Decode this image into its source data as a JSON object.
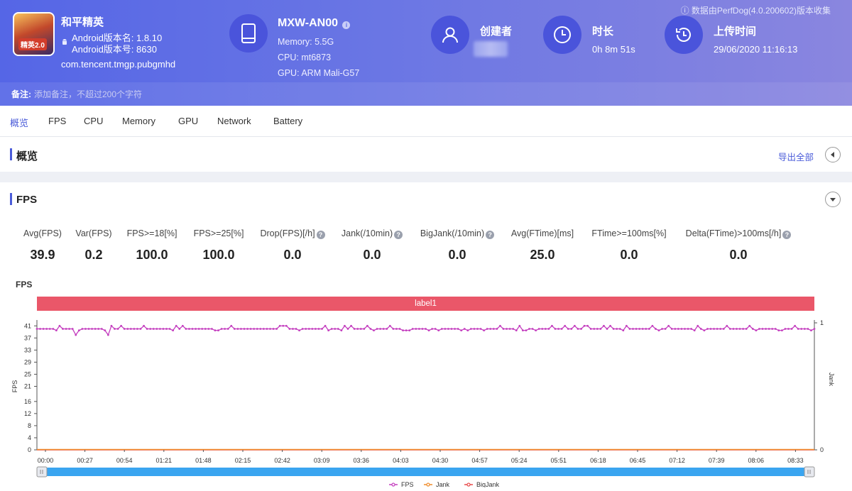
{
  "header": {
    "note": "ⓘ 数据由PerfDog(4.0.200602)版本收集",
    "app": {
      "icon_badge": "精英2.0",
      "name": "和平精英",
      "version_name": "Android版本名: 1.8.10",
      "version_code": "Android版本号: 8630",
      "package": "com.tencent.tmgp.pubgmhd"
    },
    "device": {
      "title": "MXW-AN00",
      "memory": "Memory: 5.5G",
      "cpu": "CPU: mt6873",
      "gpu": "GPU: ARM Mali-G57"
    },
    "creator": {
      "title": "创建者"
    },
    "duration": {
      "title": "时长",
      "value": "0h 8m 51s"
    },
    "upload": {
      "title": "上传时间",
      "value": "29/06/2020 11:16:13"
    },
    "remark": {
      "label": "备注:",
      "placeholder": "添加备注，不超过200个字符"
    }
  },
  "tabs": [
    "概览",
    "FPS",
    "CPU",
    "Memory",
    "GPU",
    "Network",
    "Battery"
  ],
  "overview": {
    "title": "概览",
    "export": "导出全部"
  },
  "fps_section": {
    "title": "FPS",
    "metrics": [
      {
        "label": "Avg(FPS)",
        "value": "39.9",
        "help": false
      },
      {
        "label": "Var(FPS)",
        "value": "0.2",
        "help": false
      },
      {
        "label": "FPS>=18[%]",
        "value": "100.0",
        "help": false
      },
      {
        "label": "FPS>=25[%]",
        "value": "100.0",
        "help": false
      },
      {
        "label": "Drop(FPS)[/h]",
        "value": "0.0",
        "help": true
      },
      {
        "label": "Jank(/10min)",
        "value": "0.0",
        "help": true
      },
      {
        "label": "BigJank(/10min)",
        "value": "0.0",
        "help": true
      },
      {
        "label": "Avg(FTime)[ms]",
        "value": "25.0",
        "help": false
      },
      {
        "label": "FTime>=100ms[%]",
        "value": "0.0",
        "help": false
      },
      {
        "label": "Delta(FTime)>100ms[/h]",
        "value": "0.0",
        "help": true
      }
    ]
  },
  "chart_data": {
    "type": "line",
    "title": "FPS",
    "label_band": "label1",
    "ylabel": "FPS",
    "y2label": "Jank",
    "yticks": [
      0,
      4,
      8,
      12,
      16,
      21,
      25,
      29,
      33,
      37,
      41
    ],
    "ylim": [
      0,
      42
    ],
    "y2ticks": [
      0,
      1
    ],
    "xticks": [
      "00:00",
      "00:27",
      "00:54",
      "01:21",
      "01:48",
      "02:15",
      "02:42",
      "03:09",
      "03:36",
      "04:03",
      "04:30",
      "04:57",
      "05:24",
      "05:51",
      "06:18",
      "06:45",
      "07:12",
      "07:39",
      "08:06",
      "08:33"
    ],
    "duration_s": 531,
    "legend_position": "bottom",
    "series": [
      {
        "name": "FPS",
        "color": "#c43fbf",
        "baseline": 40,
        "range": [
          38,
          41
        ]
      },
      {
        "name": "Jank",
        "color": "#f08c2a",
        "constant": 0
      },
      {
        "name": "BigJank",
        "color": "#e84a4a",
        "constant": 0
      }
    ]
  }
}
